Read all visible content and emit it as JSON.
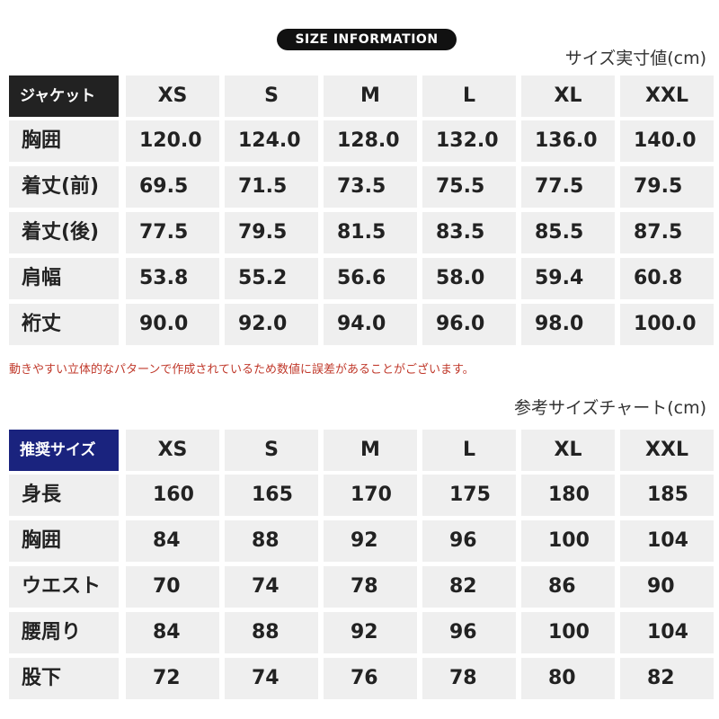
{
  "badge": "SIZE INFORMATION",
  "table1": {
    "caption": "サイズ実寸値(cm)",
    "header": [
      "ジャケット",
      "XS",
      "S",
      "M",
      "L",
      "XL",
      "XXL"
    ],
    "rows": [
      [
        "胸囲",
        "120.0",
        "124.0",
        "128.0",
        "132.0",
        "136.0",
        "140.0"
      ],
      [
        "着丈(前)",
        "69.5",
        "71.5",
        "73.5",
        "75.5",
        "77.5",
        "79.5"
      ],
      [
        "着丈(後)",
        "77.5",
        "79.5",
        "81.5",
        "83.5",
        "85.5",
        "87.5"
      ],
      [
        "肩幅",
        "53.8",
        "55.2",
        "56.6",
        "58.0",
        "59.4",
        "60.8"
      ],
      [
        "裄丈",
        "90.0",
        "92.0",
        "94.0",
        "96.0",
        "98.0",
        "100.0"
      ]
    ]
  },
  "note": "動きやすい立体的なパターンで作成されているため数値に誤差があることがございます。",
  "table2": {
    "caption": "参考サイズチャート(cm)",
    "header": [
      "推奨サイズ",
      "XS",
      "S",
      "M",
      "L",
      "XL",
      "XXL"
    ],
    "rows": [
      [
        "身長",
        "160",
        "165",
        "170",
        "175",
        "180",
        "185"
      ],
      [
        "胸囲",
        "84",
        "88",
        "92",
        "96",
        "100",
        "104"
      ],
      [
        "ウエスト",
        "70",
        "74",
        "78",
        "82",
        "86",
        "90"
      ],
      [
        "腰周り",
        "84",
        "88",
        "92",
        "96",
        "100",
        "104"
      ],
      [
        "股下",
        "72",
        "74",
        "76",
        "78",
        "80",
        "82"
      ]
    ]
  }
}
